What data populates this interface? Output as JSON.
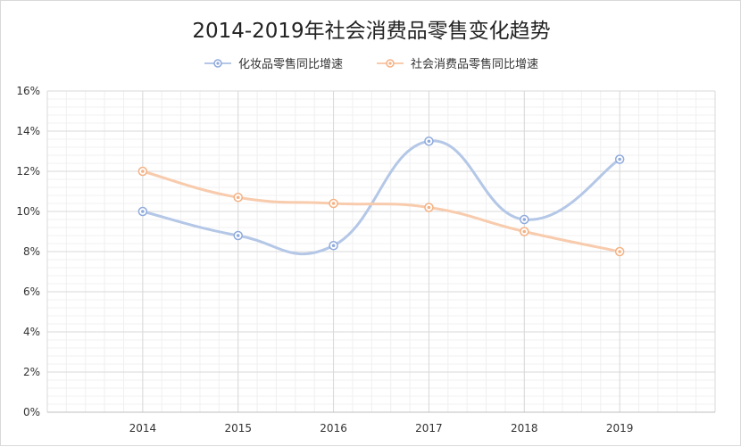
{
  "chart_data": {
    "type": "line",
    "title": "2014-2019年社会消费品零售变化趋势",
    "categories": [
      "2014",
      "2015",
      "2016",
      "2017",
      "2018",
      "2019"
    ],
    "series": [
      {
        "name": "化妆品零售同比增速",
        "values": [
          10.0,
          8.8,
          8.3,
          13.5,
          9.6,
          12.6
        ],
        "color": "#b4c7e7"
      },
      {
        "name": "社会消费品零售同比增速",
        "values": [
          12.0,
          10.7,
          10.4,
          10.2,
          9.0,
          8.0
        ],
        "color": "#f8cbad"
      }
    ],
    "y_ticks": [
      "0%",
      "2%",
      "4%",
      "6%",
      "8%",
      "10%",
      "12%",
      "14%",
      "16%"
    ],
    "ylim": [
      0,
      16
    ],
    "grid": true,
    "legend_position": "top",
    "smooth": true
  }
}
